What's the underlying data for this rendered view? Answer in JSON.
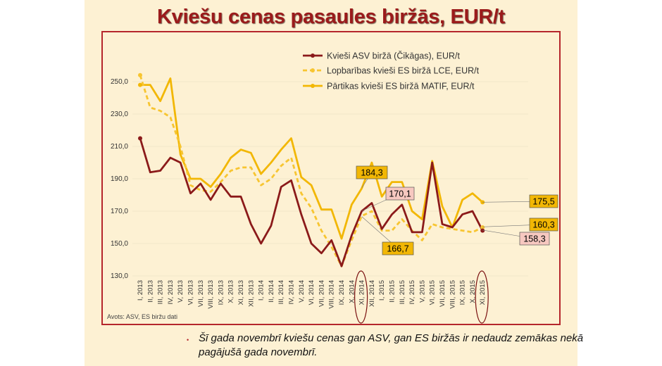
{
  "title": "Kviešu cenas pasaules biržās, EUR/t",
  "source": "Avots: ASV, ES biržu dati",
  "note": "Šī gada novembrī kviešu cenas gan ASV, gan ES biržās ir nedaudz zemākas nekā pagājušā gada novembrī.",
  "colors": {
    "asv": "#8b1a1a",
    "lce": "#f7c531",
    "matif": "#f2b705",
    "title": "#9b1b1b",
    "frame": "#b5262c"
  },
  "chart_data": {
    "type": "line",
    "ylim": [
      130,
      260
    ],
    "yticks": [
      "130,0",
      "150,0",
      "170,0",
      "190,0",
      "210,0",
      "230,0",
      "250,0"
    ],
    "categories": [
      "I, 2013",
      "II, 2013",
      "III, 2013",
      "IV, 2013",
      "V, 2013",
      "VI, 2013",
      "VII, 2013",
      "VIII, 2013",
      "IX, 2013",
      "X, 2013",
      "XI, 2013",
      "XII, 2013",
      "I, 2014",
      "II, 2014",
      "III, 2014",
      "IV, 2014",
      "V, 2014",
      "VI, 2014",
      "VII, 2014",
      "VIII, 2014",
      "IX, 2014",
      "X, 2014",
      "XI, 2014",
      "XII, 2014",
      "I, 2015",
      "II, 2015",
      "III, 2015",
      "IV, 2015",
      "V, 2015",
      "VI, 2015",
      "VII, 2015",
      "VIII, 2015",
      "IX, 2015",
      "X, 2015",
      "XI, 2015"
    ],
    "series": [
      {
        "name": "Kvieši ASV biržā (Čikāgas), EUR/t",
        "values": [
          215,
          194,
          195,
          203,
          200,
          181,
          187,
          177,
          187,
          179,
          179,
          162,
          150,
          161,
          185,
          189,
          168,
          150,
          144,
          152,
          136,
          155,
          170,
          175,
          159,
          168,
          174,
          157,
          157,
          200,
          162,
          160,
          168,
          170,
          158
        ]
      },
      {
        "name": "Lopbarības kvieši ES biržā LCE, EUR/t",
        "values": [
          254,
          234,
          232,
          228,
          210,
          186,
          183,
          182,
          188,
          195,
          197,
          197,
          186,
          190,
          198,
          203,
          181,
          172,
          158,
          148,
          136,
          152,
          167,
          170,
          158,
          158,
          165,
          158,
          152,
          162,
          160,
          159,
          158,
          157,
          160
        ]
      },
      {
        "name": "Pārtikas kvieši ES biržā MATIF, EUR/t",
        "values": [
          248,
          248,
          238,
          252,
          205,
          190,
          190,
          185,
          193,
          203,
          208,
          206,
          193,
          200,
          208,
          215,
          191,
          186,
          171,
          171,
          153,
          174,
          184,
          200,
          179,
          188,
          188,
          170,
          165,
          201,
          173,
          160,
          177,
          181,
          175.5
        ]
      }
    ],
    "annotations": [
      {
        "text": "184,3"
      },
      {
        "text": "170,1"
      },
      {
        "text": "166,7"
      },
      {
        "text": "175,5"
      },
      {
        "text": "160,3"
      },
      {
        "text": "158,3"
      }
    ]
  }
}
